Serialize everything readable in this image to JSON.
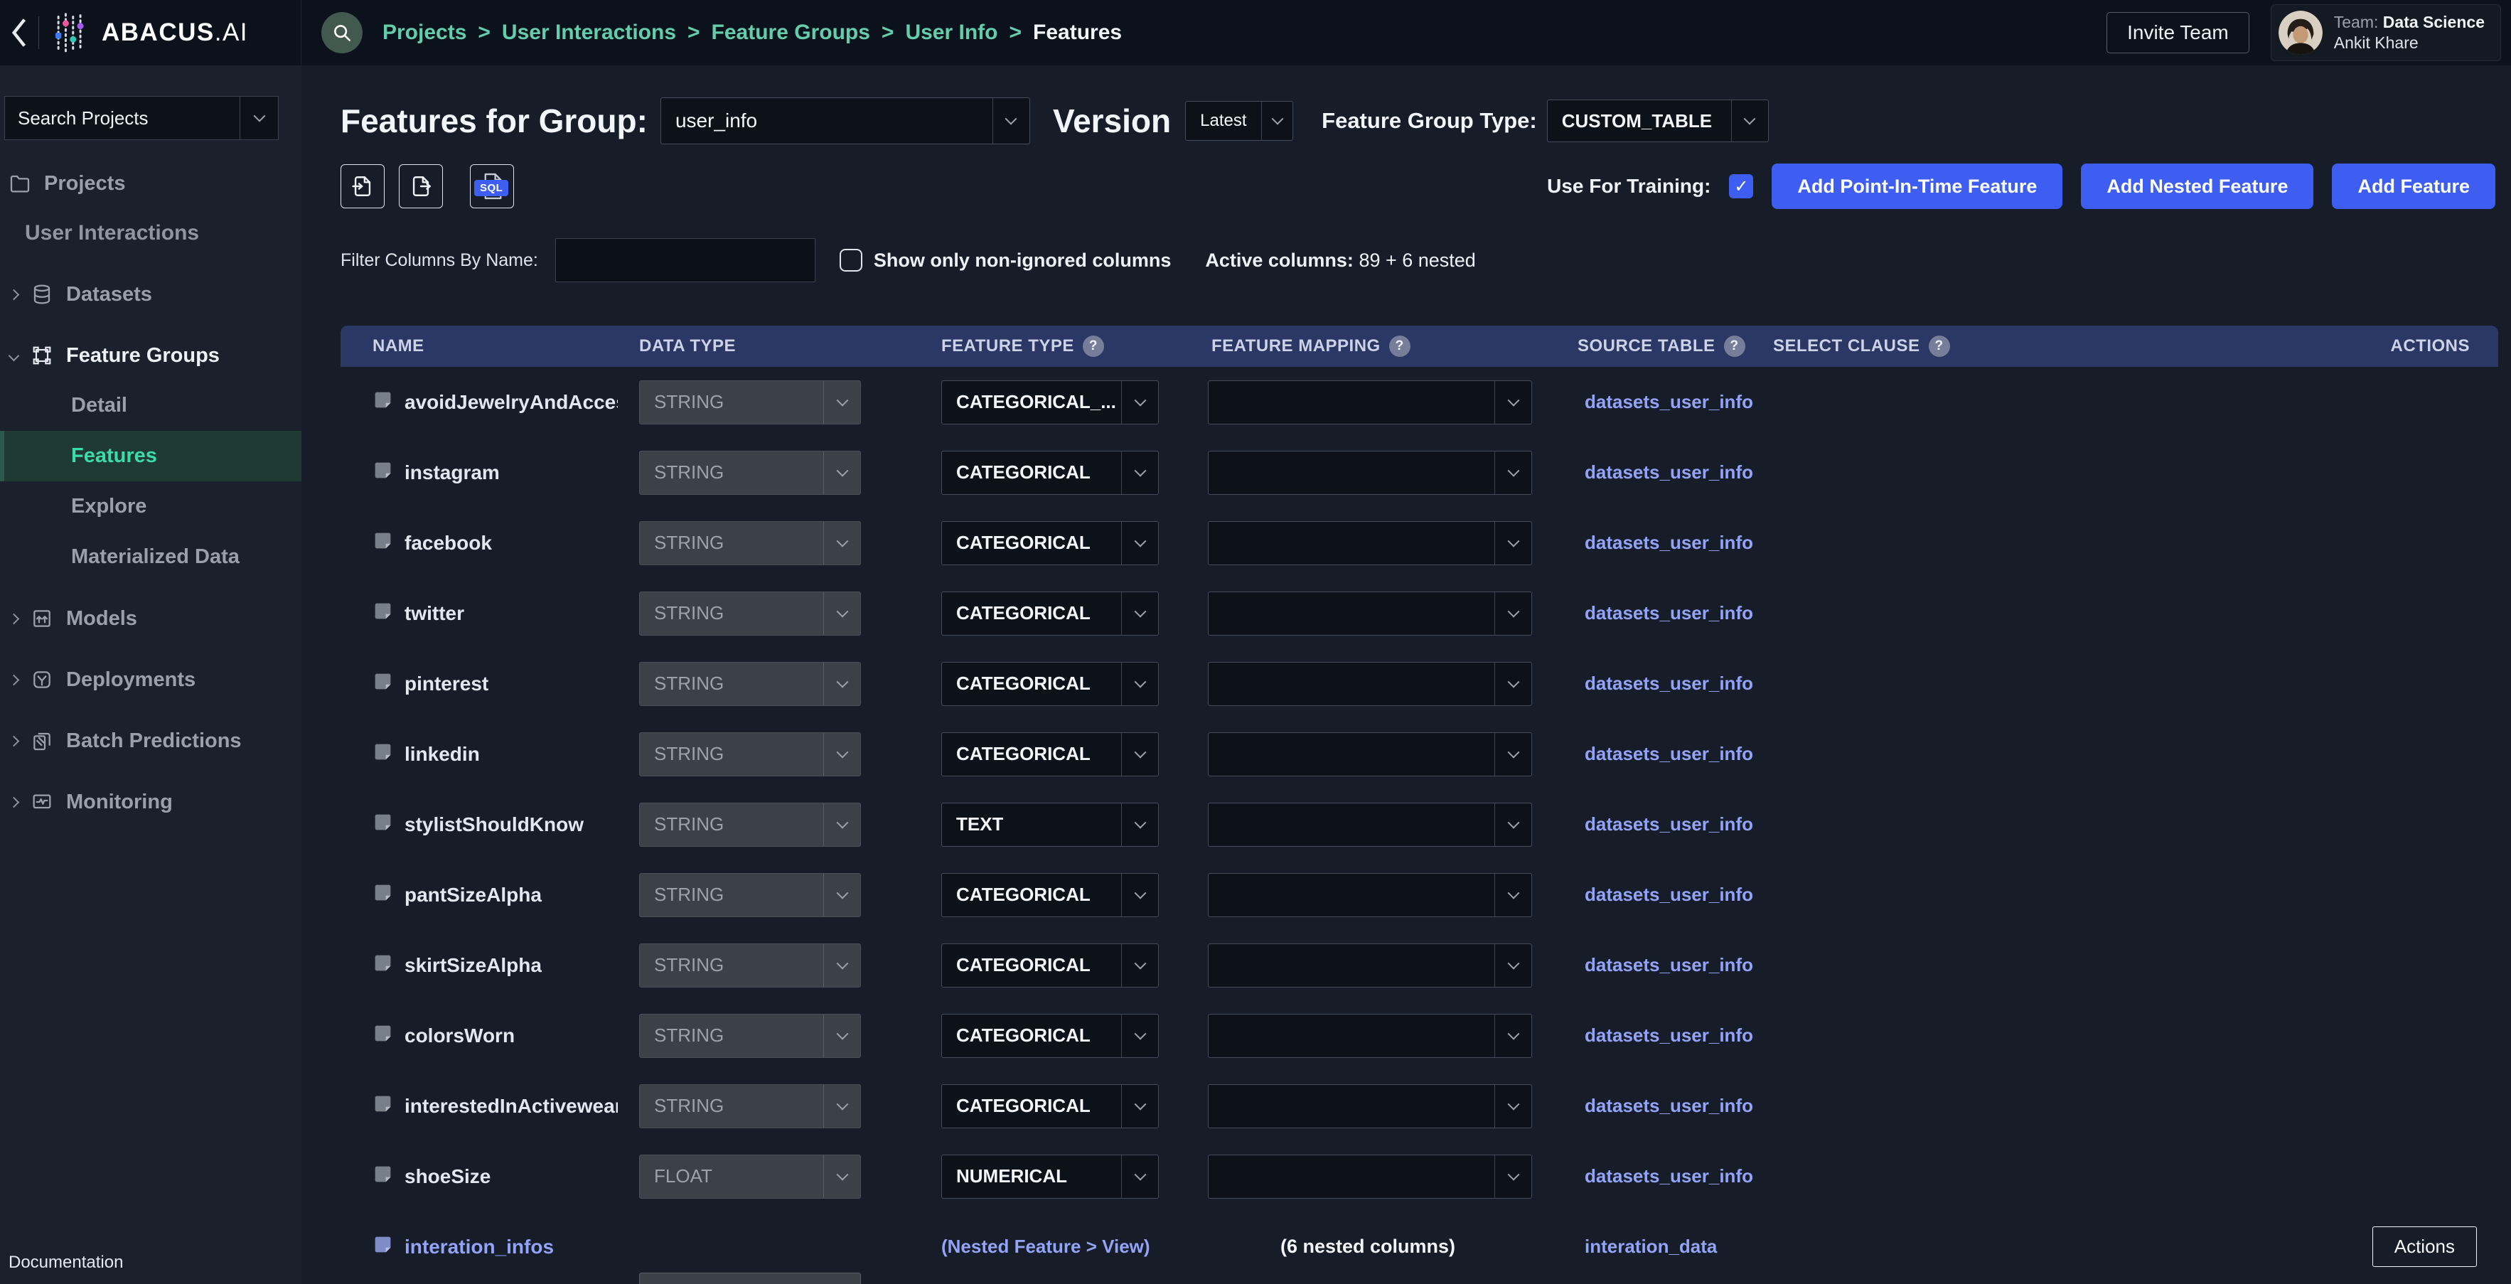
{
  "topbar": {
    "logo": "ABACUS",
    "logo_suffix": ".AI",
    "breadcrumb": [
      "Projects",
      "User Interactions",
      "Feature Groups",
      "User Info",
      "Features"
    ],
    "breadcrumb_separator": ">",
    "invite_button": "Invite Team",
    "user": {
      "team_label": "Team:",
      "team_name": "Data Science",
      "user_name": "Ankit Khare"
    }
  },
  "sidebar": {
    "search_select": "Search Projects",
    "nav": [
      {
        "type": "item",
        "icon": "folder-icon",
        "label": "Projects"
      },
      {
        "type": "project",
        "label": "User Interactions"
      },
      {
        "type": "group",
        "icon": "datasets-icon",
        "label": "Datasets",
        "expanded": false
      },
      {
        "type": "group",
        "icon": "feature-groups-icon",
        "label": "Feature Groups",
        "expanded": true,
        "children": [
          {
            "label": "Detail",
            "active": false
          },
          {
            "label": "Features",
            "active": true
          },
          {
            "label": "Explore",
            "active": false
          },
          {
            "label": "Materialized Data",
            "active": false
          }
        ]
      },
      {
        "type": "group",
        "icon": "models-icon",
        "label": "Models",
        "expanded": false
      },
      {
        "type": "group",
        "icon": "deployments-icon",
        "label": "Deployments",
        "expanded": false
      },
      {
        "type": "group",
        "icon": "batch-predictions-icon",
        "label": "Batch Predictions",
        "expanded": false
      },
      {
        "type": "group",
        "icon": "monitoring-icon",
        "label": "Monitoring",
        "expanded": false
      }
    ],
    "footer_link": "Documentation"
  },
  "page_header": {
    "title": "Features for Group:",
    "group_value": "user_info",
    "version_label": "Version",
    "version_value": "Latest",
    "type_label": "Feature Group Type:",
    "type_value": "CUSTOM_TABLE"
  },
  "toolbar": {
    "sql_badge": "SQL",
    "training_label": "Use For Training:",
    "training_checked": true,
    "check_glyph": "✓",
    "action_buttons": [
      "Add Point-In-Time Feature",
      "Add Nested Feature",
      "Add Feature"
    ]
  },
  "filter_bar": {
    "filter_label": "Filter Columns By Name:",
    "filter_value": "",
    "show_only_label": "Show only non-ignored columns",
    "show_only_checked": false,
    "active_columns_label": "Active columns:",
    "active_columns_value": "89 + 6 nested"
  },
  "table": {
    "help_glyph": "?",
    "columns": [
      {
        "label": "NAME",
        "help": false
      },
      {
        "label": "DATA TYPE",
        "help": false
      },
      {
        "label": "FEATURE TYPE",
        "help": true
      },
      {
        "label": "FEATURE MAPPING",
        "help": true
      },
      {
        "label": "SOURCE TABLE",
        "help": true
      },
      {
        "label": "SELECT CLAUSE",
        "help": true
      },
      {
        "label": "ACTIONS",
        "help": false
      }
    ],
    "rows": [
      {
        "name": "avoidJewelryAndAccesso",
        "data_type": "STRING",
        "feature_type": "CATEGORICAL_...",
        "feature_mapping": "",
        "source_table": "datasets_user_info"
      },
      {
        "name": "instagram",
        "data_type": "STRING",
        "feature_type": "CATEGORICAL",
        "feature_mapping": "",
        "source_table": "datasets_user_info"
      },
      {
        "name": "facebook",
        "data_type": "STRING",
        "feature_type": "CATEGORICAL",
        "feature_mapping": "",
        "source_table": "datasets_user_info"
      },
      {
        "name": "twitter",
        "data_type": "STRING",
        "feature_type": "CATEGORICAL",
        "feature_mapping": "",
        "source_table": "datasets_user_info"
      },
      {
        "name": "pinterest",
        "data_type": "STRING",
        "feature_type": "CATEGORICAL",
        "feature_mapping": "",
        "source_table": "datasets_user_info"
      },
      {
        "name": "linkedin",
        "data_type": "STRING",
        "feature_type": "CATEGORICAL",
        "feature_mapping": "",
        "source_table": "datasets_user_info"
      },
      {
        "name": "stylistShouldKnow",
        "data_type": "STRING",
        "feature_type": "TEXT",
        "feature_mapping": "",
        "source_table": "datasets_user_info"
      },
      {
        "name": "pantSizeAlpha",
        "data_type": "STRING",
        "feature_type": "CATEGORICAL",
        "feature_mapping": "",
        "source_table": "datasets_user_info"
      },
      {
        "name": "skirtSizeAlpha",
        "data_type": "STRING",
        "feature_type": "CATEGORICAL",
        "feature_mapping": "",
        "source_table": "datasets_user_info"
      },
      {
        "name": "colorsWorn",
        "data_type": "STRING",
        "feature_type": "CATEGORICAL",
        "feature_mapping": "",
        "source_table": "datasets_user_info"
      },
      {
        "name": "interestedInActivewear",
        "data_type": "STRING",
        "feature_type": "CATEGORICAL",
        "feature_mapping": "",
        "source_table": "datasets_user_info"
      },
      {
        "name": "shoeSize",
        "data_type": "FLOAT",
        "feature_type": "NUMERICAL",
        "feature_mapping": "",
        "source_table": "datasets_user_info"
      },
      {
        "name": "interation_infos",
        "nested": true,
        "feature_type_link": "(Nested Feature > View)",
        "nested_columns_text": "(6 nested columns)",
        "source_table": "interation_data",
        "action_button": "Actions"
      }
    ]
  },
  "colors": {
    "accent_blue": "#3d5ef1",
    "link": "#93a3f7",
    "breadcrumb_green": "#63cdac",
    "active_green": "#3cdca6",
    "table_header_navy": "#2b3765"
  }
}
